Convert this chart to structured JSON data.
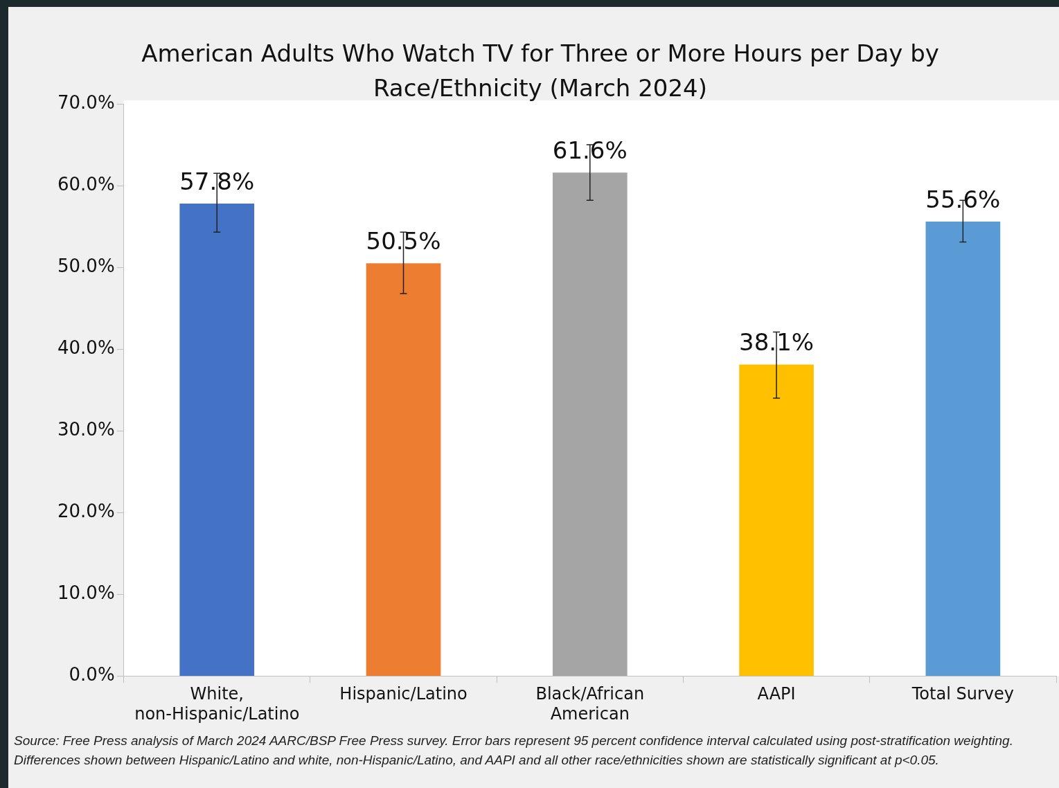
{
  "chart_data": {
    "type": "bar",
    "title": "American Adults Who Watch TV for Three or More Hours per Day by Race/Ethnicity (March 2024)",
    "categories": [
      "White, non-Hispanic/Latino",
      "Hispanic/Latino",
      "Black/African American",
      "AAPI",
      "Total Survey"
    ],
    "values": [
      57.8,
      50.5,
      61.6,
      38.1,
      55.6
    ],
    "colors": [
      "#4472c4",
      "#ed7d31",
      "#a5a5a5",
      "#ffc000",
      "#5b9bd5"
    ],
    "value_labels": [
      "57.8%",
      "50.5%",
      "61.6%",
      "38.1%",
      "55.6%"
    ],
    "errors": [
      [
        54.3,
        61.5
      ],
      [
        46.8,
        54.3
      ],
      [
        58.2,
        65.0
      ],
      [
        34.0,
        42.1
      ],
      [
        53.1,
        58.2
      ]
    ],
    "ylim": [
      0,
      70
    ],
    "yticks": [
      {
        "value": 0,
        "label": "0.0%"
      },
      {
        "value": 10,
        "label": "10.0%"
      },
      {
        "value": 20,
        "label": "20.0%"
      },
      {
        "value": 30,
        "label": "30.0%"
      },
      {
        "value": 40,
        "label": "40.0%"
      },
      {
        "value": 50,
        "label": "50.0%"
      },
      {
        "value": 60,
        "label": "60.0%"
      },
      {
        "value": 70,
        "label": "70.0%"
      }
    ],
    "legend": false,
    "annotations": [
      "Source: Free Press analysis of March 2024 AARC/BSP Free Press survey. Error bars represent 95 percent confidence interval calculated using post-stratification weighting. Differences shown between Hispanic/Latino and white, non-Hispanic/Latino, and AAPI and all other race/ethnicities shown are statistically  significant at p<0.05."
    ]
  }
}
